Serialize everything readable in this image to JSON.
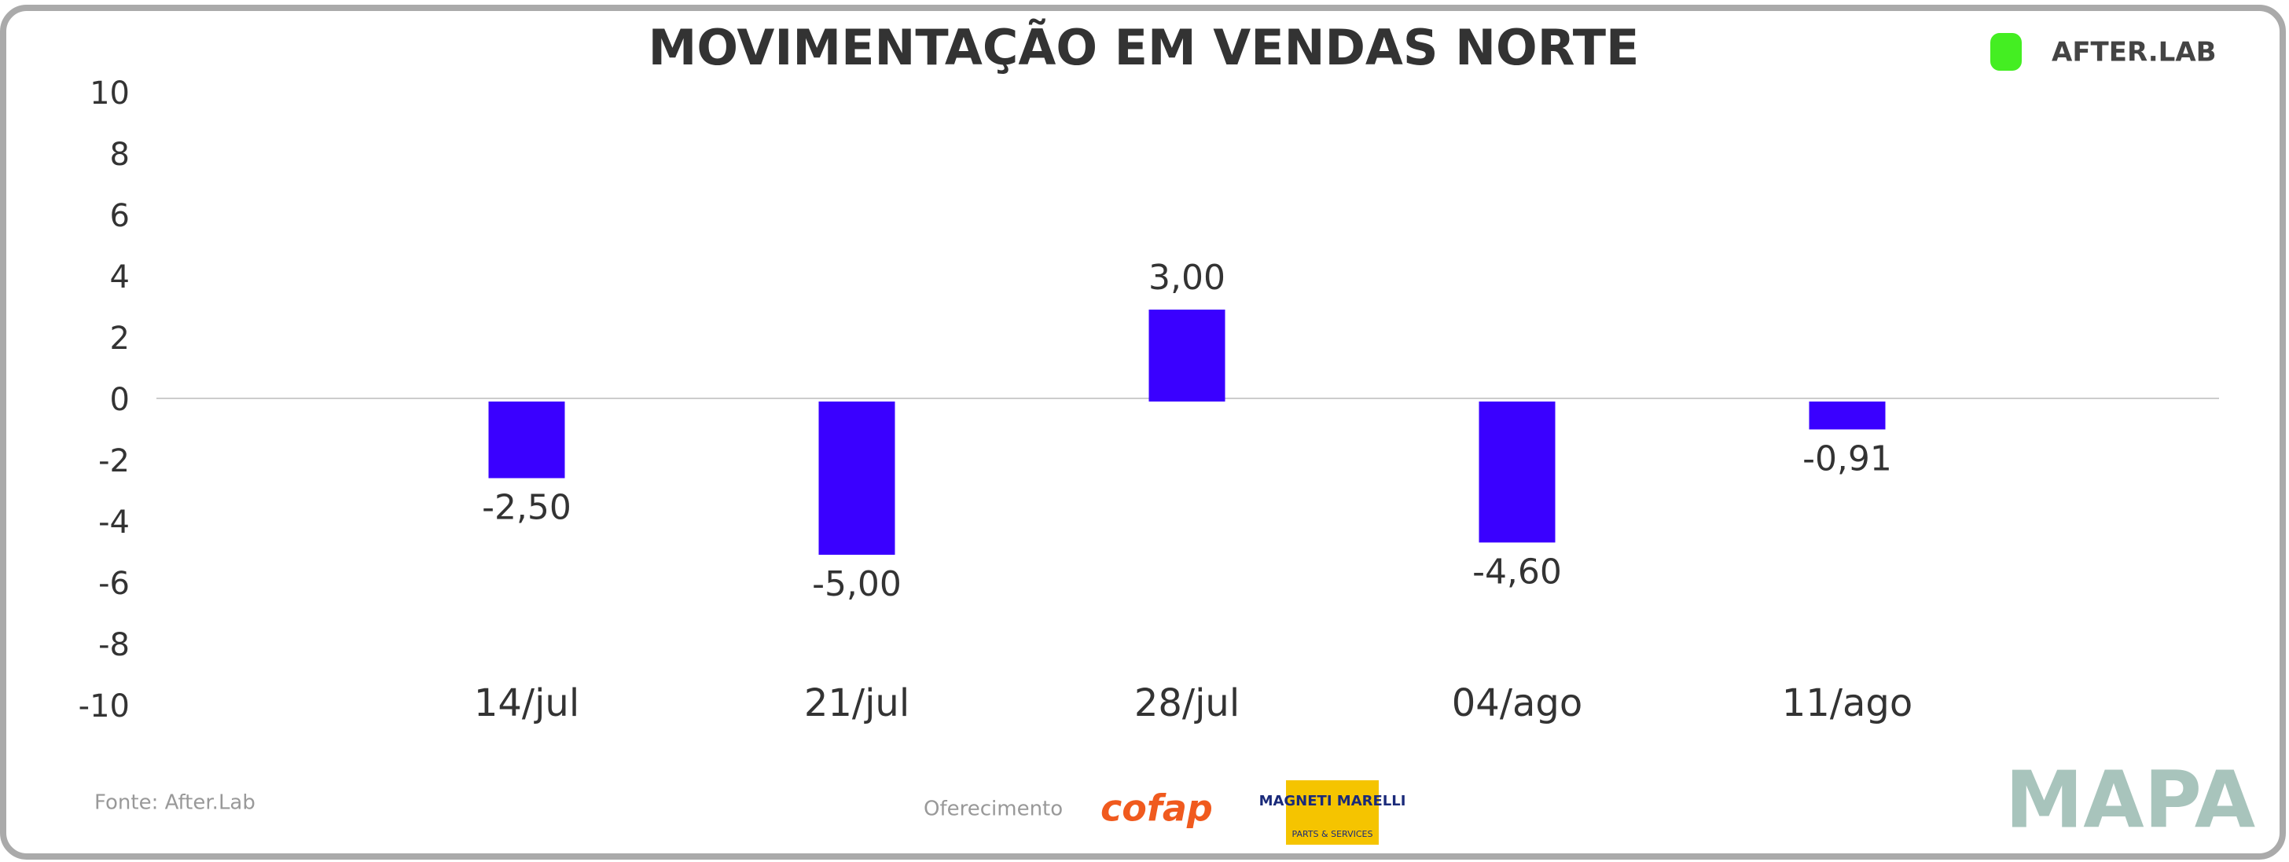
{
  "chart_data": {
    "type": "bar",
    "title": "MOVIMENTAÇÃO EM VENDAS NORTE",
    "categories": [
      "14/jul",
      "21/jul",
      "28/jul",
      "04/ago",
      "11/ago"
    ],
    "values": [
      -2.5,
      -5,
      3,
      -4.6,
      -0.91
    ],
    "value_labels": [
      "-2,50",
      "-5,00",
      "3,00",
      "-4,60",
      "-0,91"
    ],
    "color": "#3a00ff",
    "ylim": [
      -10,
      10
    ],
    "yticks": [
      -10,
      -8,
      -6,
      -4,
      -2,
      0,
      2,
      4,
      6,
      8,
      10
    ],
    "grid": false
  },
  "footer": {
    "source": "Fonte: After.Lab",
    "sponsor": "Oferecimento"
  },
  "logos": {
    "afterlab": "AFTER.LAB",
    "cofap": "cofap",
    "magneti": "MAGNETI MARELLI",
    "magneti_sub": "PARTS & SERVICES",
    "mapa": "MAPA"
  }
}
